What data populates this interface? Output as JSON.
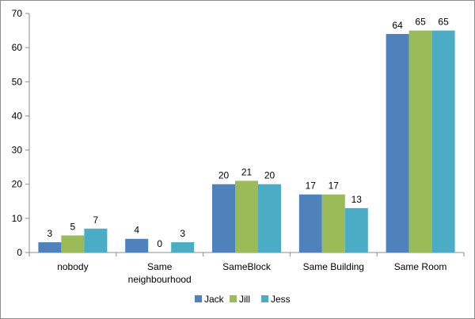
{
  "chart_data": {
    "type": "bar",
    "categories": [
      [
        "nobody"
      ],
      [
        "Same",
        "neighbourhood"
      ],
      [
        "SameBlock"
      ],
      [
        "Same Building"
      ],
      [
        "Same Room"
      ]
    ],
    "series": [
      {
        "name": "Jack",
        "color": "#4f81bd",
        "values": [
          3,
          4,
          20,
          17,
          64
        ]
      },
      {
        "name": "Jill",
        "color": "#9bbb59",
        "values": [
          5,
          0,
          21,
          17,
          65
        ]
      },
      {
        "name": "Jess",
        "color": "#4bacc6",
        "values": [
          7,
          3,
          20,
          13,
          65
        ]
      }
    ],
    "ylim": [
      0,
      70
    ],
    "yticks": [
      0,
      10,
      20,
      30,
      40,
      50,
      60,
      70
    ],
    "grid": false,
    "legend_position": "bottom",
    "data_labels": true
  }
}
